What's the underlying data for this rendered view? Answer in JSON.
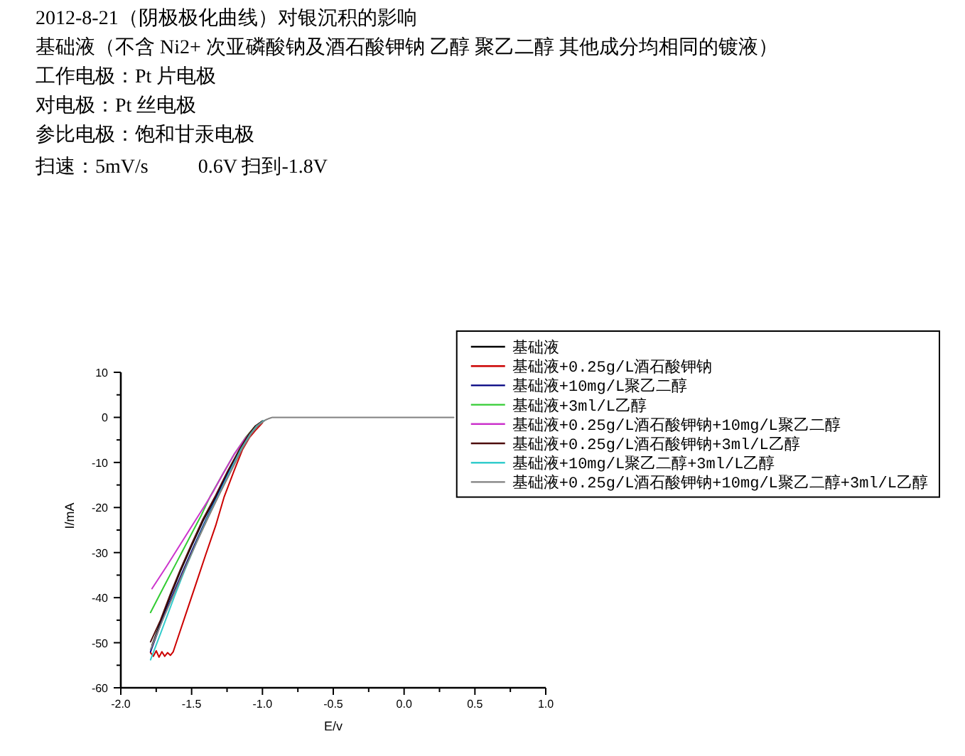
{
  "chart_data": {
    "type": "line",
    "title": "2012-8-21（阴极极化曲线）对银沉积的影响",
    "annotations": [
      "基础液（不含 Ni2+ 次亚磷酸钠及酒石酸钾钠 乙醇 聚乙二醇 其他成分均相同的镀液）",
      "工作电极：Pt 片电极",
      "对电极：Pt 丝电极",
      "参比电极：饱和甘汞电极",
      "扫速：5mV/s          0.6V 扫到-1.8V"
    ],
    "xlabel": "E/v",
    "ylabel": "I/mA",
    "xlim": [
      -2,
      1
    ],
    "ylim": [
      -60,
      10
    ],
    "xticks": [
      {
        "value": -2,
        "label": "-2.0"
      },
      {
        "value": -1.75,
        "label": null
      },
      -1.5,
      {
        "value": -1.25,
        "label": null
      },
      {
        "value": -1,
        "label": "-1.0"
      },
      {
        "value": -0.75,
        "label": null
      },
      -0.5,
      {
        "value": -0.25,
        "label": null
      },
      {
        "value": 0,
        "label": "0.0"
      },
      {
        "value": 0.25,
        "label": null
      },
      0.5,
      {
        "value": 0.75,
        "label": null
      },
      {
        "value": 1,
        "label": "1.0"
      }
    ],
    "yticks": [
      -60,
      {
        "value": -55,
        "label": null
      },
      -50,
      {
        "value": -45,
        "label": null
      },
      -40,
      {
        "value": -35,
        "label": null
      },
      -30,
      {
        "value": -25,
        "label": null
      },
      -20,
      {
        "value": -15,
        "label": null
      },
      -10,
      {
        "value": -5,
        "label": null
      },
      0,
      {
        "value": 5,
        "label": null
      },
      10
    ],
    "legend": "top right",
    "series": [
      {
        "name": "基础液",
        "color": "#000000",
        "x": [
          -1.78,
          -1.72,
          -1.65,
          -1.58,
          -1.5,
          -1.42,
          -1.33,
          -1.25,
          -1.16,
          -1.1,
          -1.05,
          -1.0
        ],
        "values": [
          -50.6,
          -45.5,
          -39.6,
          -34.2,
          -28.5,
          -23.0,
          -17.6,
          -12.4,
          -7.1,
          -4.0,
          -2.0,
          -0.8
        ]
      },
      {
        "name": "基础液+0.25g/L酒石酸钾钠",
        "color": "#cc0000",
        "x": [
          -1.79,
          -1.77,
          -1.75,
          -1.73,
          -1.71,
          -1.69,
          -1.67,
          -1.65,
          -1.63,
          -1.55,
          -1.47,
          -1.4,
          -1.33,
          -1.27,
          -1.2,
          -1.14,
          -1.09,
          -1.05,
          -1.0
        ],
        "values": [
          -52.2,
          -53.0,
          -51.8,
          -53.2,
          -52.0,
          -53.0,
          -52.2,
          -52.8,
          -52.0,
          -44.5,
          -37.0,
          -30.4,
          -24.0,
          -17.6,
          -11.8,
          -7.1,
          -4.4,
          -2.9,
          -1.2
        ]
      },
      {
        "name": "基础液+10mg/L聚乙二醇",
        "color": "#000080",
        "x": [
          -1.79,
          -1.72,
          -1.64,
          -1.56,
          -1.48,
          -1.4,
          -1.32,
          -1.24,
          -1.15,
          -1.09
        ],
        "values": [
          -52.0,
          -46.0,
          -39.8,
          -34.0,
          -28.3,
          -22.8,
          -17.5,
          -12.3,
          -7.0,
          -3.9
        ]
      },
      {
        "name": "基础液+3ml/L乙醇",
        "color": "#33cc33",
        "x": [
          -1.79,
          -1.7,
          -1.6,
          -1.5,
          -1.43,
          -1.37,
          -1.28,
          -1.2,
          -1.12,
          -1.06
        ],
        "values": [
          -43.3,
          -37.8,
          -31.8,
          -25.8,
          -21.6,
          -17.6,
          -12.6,
          -8.2,
          -4.5,
          -2.3
        ]
      },
      {
        "name": "基础液+0.25g/L酒石酸钾钠+10mg/L聚乙二醇",
        "color": "#cc33cc",
        "x": [
          -1.78,
          -1.68,
          -1.58,
          -1.48,
          -1.4,
          -1.35,
          -1.28,
          -1.2,
          -1.12,
          -1.06
        ],
        "values": [
          -38.0,
          -33.2,
          -28.2,
          -23.2,
          -19.2,
          -16.6,
          -12.6,
          -8.2,
          -4.6,
          -2.4
        ]
      },
      {
        "name": "基础液+0.25g/L酒石酸钾钠+3ml/L乙醇",
        "color": "#4d0d0d",
        "x": [
          -1.79,
          -1.72,
          -1.65,
          -1.58,
          -1.5,
          -1.42,
          -1.33,
          -1.25,
          -1.16,
          -1.1,
          -1.05,
          -1.0
        ],
        "values": [
          -49.8,
          -45.0,
          -39.2,
          -33.8,
          -28.1,
          -22.6,
          -17.3,
          -12.2,
          -7.0,
          -3.9,
          -1.9,
          -0.8
        ]
      },
      {
        "name": "基础液+10mg/L聚乙二醇+3ml/L乙醇",
        "color": "#33cccc",
        "x": [
          -1.79,
          -1.72,
          -1.62,
          -1.55,
          -1.47,
          -1.39,
          -1.31,
          -1.23,
          -1.15,
          -1.09,
          -1.04,
          -0.99
        ],
        "values": [
          -53.8,
          -48.0,
          -39.6,
          -34.0,
          -28.0,
          -22.4,
          -17.2,
          -12.0,
          -7.0,
          -3.9,
          -1.9,
          -0.7
        ]
      },
      {
        "name": "基础液+0.25g/L酒石酸钾钠+10mg/L聚乙二醇+3ml/L乙醇",
        "color": "#808080",
        "x": [
          -1.79,
          -1.7,
          -1.62,
          -1.54,
          -1.46,
          -1.38,
          -1.3,
          -1.22,
          -1.14,
          -1.08,
          -1.03,
          -0.98,
          -0.95,
          -0.93,
          0.35
        ],
        "values": [
          -51.5,
          -44.6,
          -38.8,
          -33.0,
          -27.4,
          -22.0,
          -16.8,
          -11.8,
          -6.8,
          -3.7,
          -1.8,
          -0.6,
          -0.2,
          0,
          0
        ]
      }
    ]
  }
}
